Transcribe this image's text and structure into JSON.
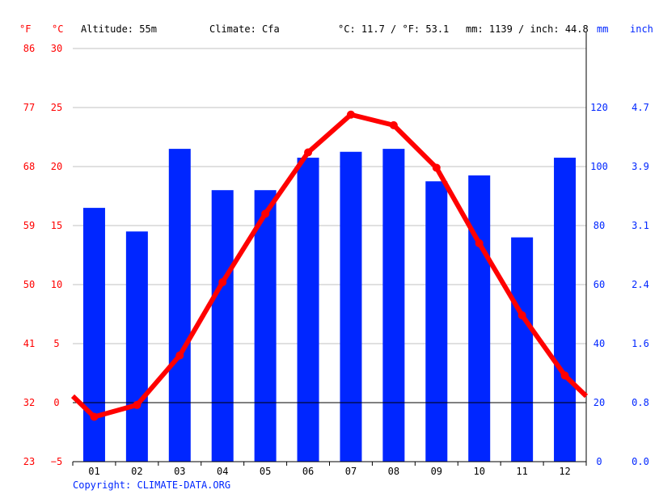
{
  "header": {
    "unit_f": "°F",
    "unit_c": "°C",
    "altitude": "Altitude: 55m",
    "climate": "Climate: Cfa",
    "temp_avg": "°C: 11.7 / °F: 53.1",
    "precip_total": "mm: 1139 / inch: 44.8",
    "unit_mm": "mm",
    "unit_inch": "inch"
  },
  "copyright": "Copyright: CLIMATE-DATA.ORG",
  "colors": {
    "temperature": "#ff0000",
    "precipitation": "#0026ff",
    "grid": "#c0c0c0"
  },
  "chart_data": {
    "type": "bar+line",
    "categories": [
      "01",
      "02",
      "03",
      "04",
      "05",
      "06",
      "07",
      "08",
      "09",
      "10",
      "11",
      "12"
    ],
    "series": [
      {
        "type": "bar",
        "axis": "right",
        "unit": "mm",
        "values": [
          86,
          78,
          106,
          92,
          92,
          103,
          105,
          106,
          95,
          97,
          76,
          103
        ]
      },
      {
        "type": "line",
        "axis": "left",
        "unit": "°C",
        "values": [
          -1.2,
          -0.2,
          4.0,
          10.2,
          16.0,
          21.2,
          24.4,
          23.5,
          19.9,
          13.5,
          7.4,
          2.3
        ]
      }
    ],
    "left_axis_c": {
      "ylim": [
        -5,
        30
      ],
      "ticks": [
        "30",
        "25",
        "20",
        "15",
        "10",
        "5",
        "0",
        "−5"
      ]
    },
    "left_axis_f": {
      "ticks": [
        "86",
        "77",
        "68",
        "59",
        "50",
        "41",
        "32",
        "23"
      ]
    },
    "right_axis_mm": {
      "ylim": [
        0,
        140
      ],
      "ticks": [
        "120",
        "100",
        "80",
        "60",
        "40",
        "20",
        "0"
      ]
    },
    "right_axis_inch": {
      "ticks": [
        "4.7",
        "3.9",
        "3.1",
        "2.4",
        "1.6",
        "0.8",
        "0.0"
      ]
    },
    "grid": true
  }
}
